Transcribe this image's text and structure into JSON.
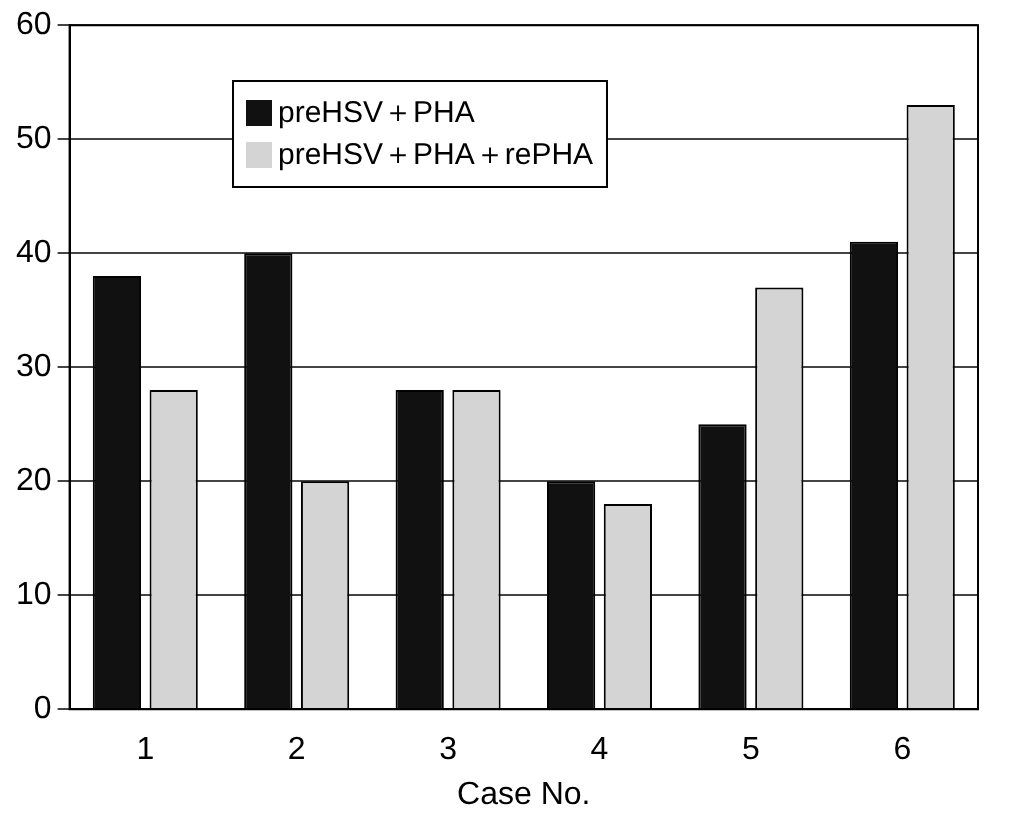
{
  "chart_data": {
    "type": "bar",
    "xlabel": "Case No.",
    "categories": [
      "1",
      "2",
      "3",
      "4",
      "5",
      "6"
    ],
    "series": [
      {
        "name": "preHSV＋PHA",
        "color": "#111111",
        "values": [
          38,
          40,
          28,
          20,
          25,
          41
        ]
      },
      {
        "name": "preHSV＋PHA＋rePHA",
        "color": "#d4d4d4",
        "values": [
          28,
          20,
          28,
          18,
          37,
          53
        ]
      }
    ],
    "ylim": [
      0,
      60
    ],
    "yticks": [
      0,
      10,
      20,
      30,
      40,
      50,
      60
    ],
    "grid": "y",
    "legend": "top left"
  }
}
